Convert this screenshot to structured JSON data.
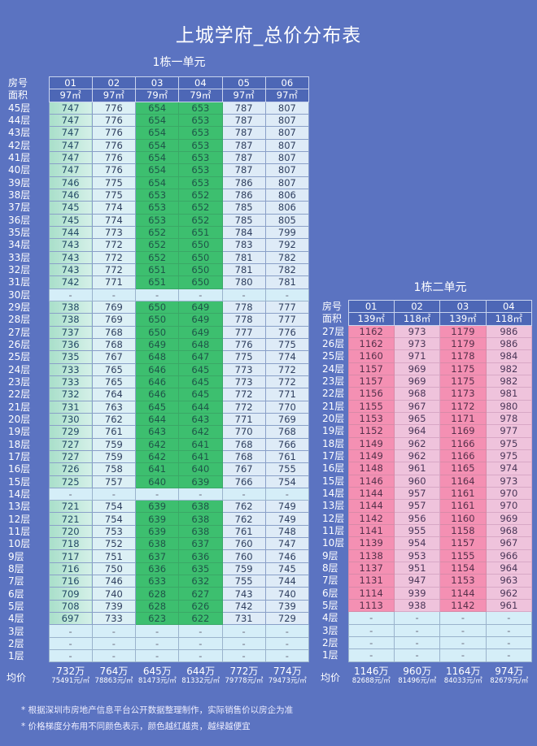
{
  "title": "上城学府_总价分布表",
  "unit1": {
    "name": "1栋一单元",
    "room_label": "房号",
    "area_label": "面积",
    "rooms": [
      "01",
      "02",
      "03",
      "04",
      "05",
      "06"
    ],
    "areas": [
      "97㎡",
      "97㎡",
      "79㎡",
      "79㎡",
      "97㎡",
      "97㎡"
    ],
    "rows": [
      {
        "f": "45层",
        "v": [
          "747",
          "776",
          "654",
          "653",
          "787",
          "807"
        ]
      },
      {
        "f": "44层",
        "v": [
          "747",
          "776",
          "654",
          "653",
          "787",
          "807"
        ]
      },
      {
        "f": "43层",
        "v": [
          "747",
          "776",
          "654",
          "653",
          "787",
          "807"
        ]
      },
      {
        "f": "42层",
        "v": [
          "747",
          "776",
          "654",
          "653",
          "787",
          "807"
        ]
      },
      {
        "f": "41层",
        "v": [
          "747",
          "776",
          "654",
          "653",
          "787",
          "807"
        ]
      },
      {
        "f": "40层",
        "v": [
          "747",
          "776",
          "654",
          "653",
          "787",
          "807"
        ]
      },
      {
        "f": "39层",
        "v": [
          "746",
          "775",
          "654",
          "653",
          "786",
          "807"
        ]
      },
      {
        "f": "38层",
        "v": [
          "746",
          "775",
          "653",
          "652",
          "786",
          "806"
        ]
      },
      {
        "f": "37层",
        "v": [
          "745",
          "774",
          "653",
          "652",
          "785",
          "806"
        ]
      },
      {
        "f": "36层",
        "v": [
          "745",
          "774",
          "653",
          "652",
          "785",
          "805"
        ]
      },
      {
        "f": "35层",
        "v": [
          "744",
          "773",
          "652",
          "651",
          "784",
          "799"
        ]
      },
      {
        "f": "34层",
        "v": [
          "743",
          "772",
          "652",
          "650",
          "783",
          "792"
        ]
      },
      {
        "f": "33层",
        "v": [
          "743",
          "772",
          "652",
          "650",
          "781",
          "782"
        ]
      },
      {
        "f": "32层",
        "v": [
          "743",
          "772",
          "651",
          "650",
          "781",
          "782"
        ]
      },
      {
        "f": "31层",
        "v": [
          "742",
          "771",
          "651",
          "650",
          "780",
          "781"
        ]
      },
      {
        "f": "30层",
        "v": [
          "-",
          "-",
          "-",
          "-",
          "-",
          "-"
        ]
      },
      {
        "f": "29层",
        "v": [
          "738",
          "769",
          "650",
          "649",
          "778",
          "777"
        ]
      },
      {
        "f": "28层",
        "v": [
          "738",
          "769",
          "650",
          "649",
          "778",
          "777"
        ]
      },
      {
        "f": "27层",
        "v": [
          "737",
          "768",
          "650",
          "649",
          "777",
          "776"
        ]
      },
      {
        "f": "26层",
        "v": [
          "736",
          "768",
          "649",
          "648",
          "776",
          "775"
        ]
      },
      {
        "f": "25层",
        "v": [
          "735",
          "767",
          "648",
          "647",
          "775",
          "774"
        ]
      },
      {
        "f": "24层",
        "v": [
          "733",
          "765",
          "646",
          "645",
          "773",
          "772"
        ]
      },
      {
        "f": "23层",
        "v": [
          "733",
          "765",
          "646",
          "645",
          "773",
          "772"
        ]
      },
      {
        "f": "22层",
        "v": [
          "732",
          "764",
          "646",
          "645",
          "772",
          "771"
        ]
      },
      {
        "f": "21层",
        "v": [
          "731",
          "763",
          "645",
          "644",
          "772",
          "770"
        ]
      },
      {
        "f": "20层",
        "v": [
          "730",
          "762",
          "644",
          "643",
          "771",
          "769"
        ]
      },
      {
        "f": "19层",
        "v": [
          "729",
          "761",
          "643",
          "642",
          "770",
          "768"
        ]
      },
      {
        "f": "18层",
        "v": [
          "727",
          "759",
          "642",
          "641",
          "768",
          "766"
        ]
      },
      {
        "f": "17层",
        "v": [
          "727",
          "759",
          "642",
          "641",
          "768",
          "761"
        ]
      },
      {
        "f": "16层",
        "v": [
          "726",
          "758",
          "641",
          "640",
          "767",
          "755"
        ]
      },
      {
        "f": "15层",
        "v": [
          "725",
          "757",
          "640",
          "639",
          "766",
          "754"
        ]
      },
      {
        "f": "14层",
        "v": [
          "-",
          "-",
          "-",
          "-",
          "-",
          "-"
        ]
      },
      {
        "f": "13层",
        "v": [
          "721",
          "754",
          "639",
          "638",
          "762",
          "749"
        ]
      },
      {
        "f": "12层",
        "v": [
          "721",
          "754",
          "639",
          "638",
          "762",
          "749"
        ]
      },
      {
        "f": "11层",
        "v": [
          "720",
          "753",
          "639",
          "638",
          "761",
          "748"
        ]
      },
      {
        "f": "10层",
        "v": [
          "718",
          "752",
          "638",
          "637",
          "760",
          "747"
        ]
      },
      {
        "f": "9层",
        "v": [
          "717",
          "751",
          "637",
          "636",
          "760",
          "746"
        ]
      },
      {
        "f": "8层",
        "v": [
          "716",
          "750",
          "636",
          "635",
          "759",
          "745"
        ]
      },
      {
        "f": "7层",
        "v": [
          "716",
          "746",
          "633",
          "632",
          "755",
          "744"
        ]
      },
      {
        "f": "6层",
        "v": [
          "709",
          "740",
          "628",
          "627",
          "743",
          "740"
        ]
      },
      {
        "f": "5层",
        "v": [
          "708",
          "739",
          "628",
          "626",
          "742",
          "739"
        ]
      },
      {
        "f": "4层",
        "v": [
          "697",
          "733",
          "623",
          "622",
          "731",
          "729"
        ]
      },
      {
        "f": "3层",
        "v": [
          "-",
          "-",
          "-",
          "-",
          "-",
          "-"
        ]
      },
      {
        "f": "2层",
        "v": [
          "-",
          "-",
          "-",
          "-",
          "-",
          "-"
        ]
      },
      {
        "f": "1层",
        "v": [
          "-",
          "-",
          "-",
          "-",
          "-",
          "-"
        ]
      }
    ],
    "avg_label": "均价",
    "avg_total": [
      "732万",
      "764万",
      "645万",
      "644万",
      "772万",
      "774万"
    ],
    "avg_unit": [
      "75491元/㎡",
      "78863元/㎡",
      "81473元/㎡",
      "81332元/㎡",
      "79778元/㎡",
      "79473元/㎡"
    ]
  },
  "unit2": {
    "name": "1栋二单元",
    "room_label": "房号",
    "area_label": "面积",
    "rooms": [
      "01",
      "02",
      "03",
      "04"
    ],
    "areas": [
      "139㎡",
      "118㎡",
      "139㎡",
      "118㎡"
    ],
    "rows": [
      {
        "f": "27层",
        "v": [
          "1162",
          "973",
          "1179",
          "986"
        ]
      },
      {
        "f": "26层",
        "v": [
          "1162",
          "973",
          "1179",
          "986"
        ]
      },
      {
        "f": "25层",
        "v": [
          "1160",
          "971",
          "1178",
          "984"
        ]
      },
      {
        "f": "24层",
        "v": [
          "1157",
          "969",
          "1175",
          "982"
        ]
      },
      {
        "f": "23层",
        "v": [
          "1157",
          "969",
          "1175",
          "982"
        ]
      },
      {
        "f": "22层",
        "v": [
          "1156",
          "968",
          "1173",
          "981"
        ]
      },
      {
        "f": "21层",
        "v": [
          "1155",
          "967",
          "1172",
          "980"
        ]
      },
      {
        "f": "20层",
        "v": [
          "1153",
          "965",
          "1171",
          "978"
        ]
      },
      {
        "f": "19层",
        "v": [
          "1152",
          "964",
          "1169",
          "977"
        ]
      },
      {
        "f": "18层",
        "v": [
          "1149",
          "962",
          "1166",
          "975"
        ]
      },
      {
        "f": "17层",
        "v": [
          "1149",
          "962",
          "1166",
          "975"
        ]
      },
      {
        "f": "16层",
        "v": [
          "1148",
          "961",
          "1165",
          "974"
        ]
      },
      {
        "f": "15层",
        "v": [
          "1146",
          "960",
          "1164",
          "973"
        ]
      },
      {
        "f": "14层",
        "v": [
          "1144",
          "957",
          "1161",
          "970"
        ]
      },
      {
        "f": "13层",
        "v": [
          "1144",
          "957",
          "1161",
          "970"
        ]
      },
      {
        "f": "12层",
        "v": [
          "1142",
          "956",
          "1160",
          "969"
        ]
      },
      {
        "f": "11层",
        "v": [
          "1141",
          "955",
          "1158",
          "968"
        ]
      },
      {
        "f": "10层",
        "v": [
          "1139",
          "954",
          "1157",
          "967"
        ]
      },
      {
        "f": "9层",
        "v": [
          "1138",
          "953",
          "1155",
          "966"
        ]
      },
      {
        "f": "8层",
        "v": [
          "1137",
          "951",
          "1154",
          "964"
        ]
      },
      {
        "f": "7层",
        "v": [
          "1131",
          "947",
          "1153",
          "963"
        ]
      },
      {
        "f": "6层",
        "v": [
          "1114",
          "939",
          "1144",
          "962"
        ]
      },
      {
        "f": "5层",
        "v": [
          "1113",
          "938",
          "1142",
          "961"
        ]
      },
      {
        "f": "4层",
        "v": [
          "-",
          "-",
          "-",
          "-"
        ]
      },
      {
        "f": "3层",
        "v": [
          "-",
          "-",
          "-",
          "-"
        ]
      },
      {
        "f": "2层",
        "v": [
          "-",
          "-",
          "-",
          "-"
        ]
      },
      {
        "f": "1层",
        "v": [
          "-",
          "-",
          "-",
          "-"
        ]
      }
    ],
    "avg_label": "均价",
    "avg_total": [
      "1146万",
      "960万",
      "1164万",
      "974万"
    ],
    "avg_unit": [
      "82688元/㎡",
      "81496元/㎡",
      "84033元/㎡",
      "82679元/㎡"
    ]
  },
  "notes": [
    "* 根据深圳市房地产信息平台公开数据整理制作，实际销售价以房企为准",
    "* 价格梯度分布用不同颜色表示，颜色越红越贵，越绿越便宜"
  ],
  "colors": {
    "background": "#5b73c1",
    "header": "#4d67b6",
    "cheap": "#3dbf6f",
    "expensive": "#f490b3"
  }
}
